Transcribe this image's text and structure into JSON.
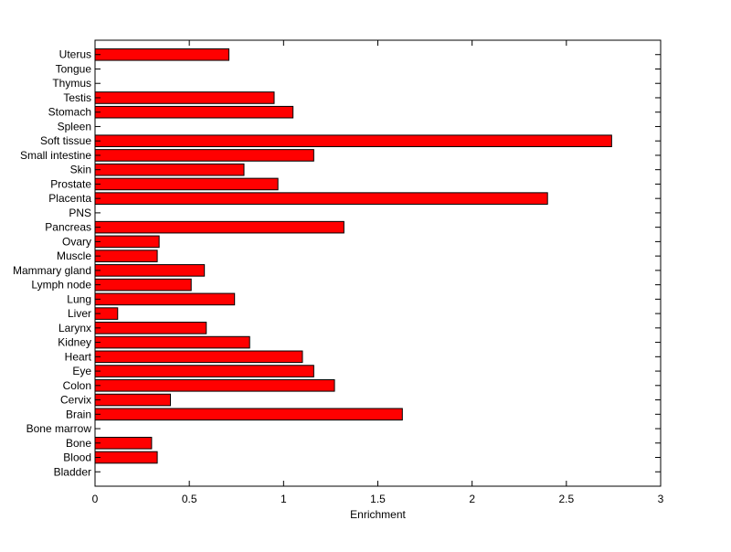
{
  "chart_data": {
    "type": "bar",
    "orientation": "horizontal",
    "title": "",
    "xlabel": "Enrichment",
    "ylabel": "",
    "xlim": [
      0,
      3
    ],
    "xticks": [
      "0",
      "0.5",
      "1",
      "1.5",
      "2",
      "2.5",
      "3"
    ],
    "grid": false,
    "legend": "none",
    "bar_color": "#ff0000",
    "bar_edge_color": "#000000",
    "categories": [
      "Bladder",
      "Blood",
      "Bone",
      "Bone marrow",
      "Brain",
      "Cervix",
      "Colon",
      "Eye",
      "Heart",
      "Kidney",
      "Larynx",
      "Liver",
      "Lung",
      "Lymph node",
      "Mammary gland",
      "Muscle",
      "Ovary",
      "Pancreas",
      "PNS",
      "Placenta",
      "Prostate",
      "Skin",
      "Small intestine",
      "Soft tissue",
      "Spleen",
      "Stomach",
      "Testis",
      "Thymus",
      "Tongue",
      "Uterus"
    ],
    "values": [
      0,
      0.33,
      0.3,
      0,
      1.63,
      0.4,
      1.27,
      1.16,
      1.1,
      0.82,
      0.59,
      0.12,
      0.74,
      0.51,
      0.58,
      0.33,
      0.34,
      1.32,
      0,
      2.4,
      0.97,
      0.79,
      1.16,
      2.74,
      0,
      1.05,
      0.95,
      0,
      0,
      0.71
    ]
  }
}
